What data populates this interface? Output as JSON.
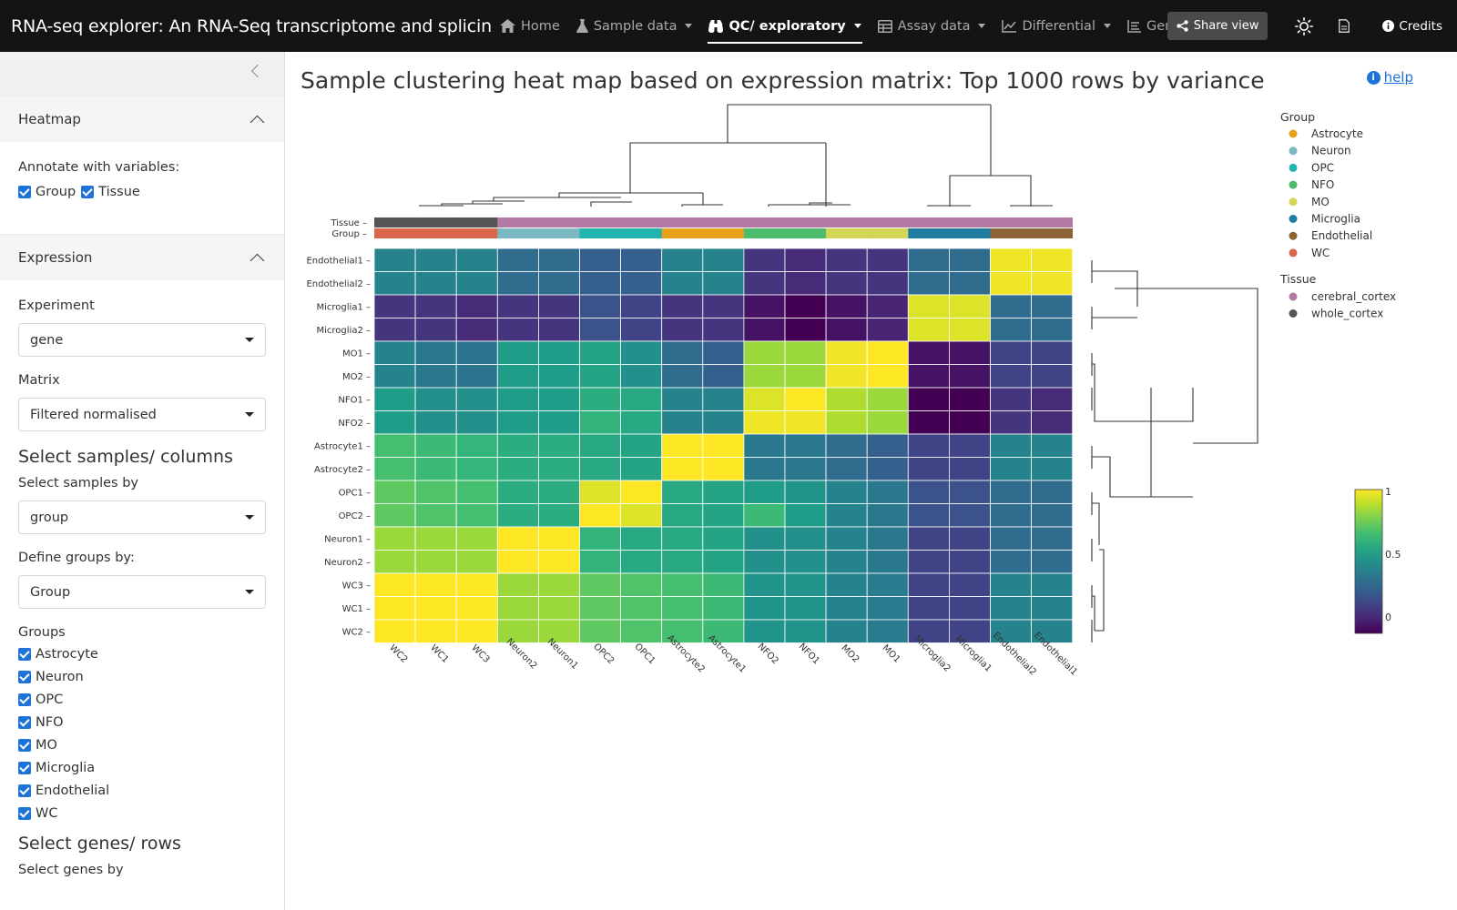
{
  "navbar": {
    "brand": "RNA-seq explorer: An RNA-Seq transcriptome and splicing d...",
    "items": [
      {
        "label": "Home",
        "icon": "home-icon",
        "dropdown": false,
        "active": false
      },
      {
        "label": "Sample data",
        "icon": "flask-icon",
        "dropdown": true,
        "active": false
      },
      {
        "label": "QC/ exploratory",
        "icon": "binoculars-icon",
        "dropdown": true,
        "active": true
      },
      {
        "label": "Assay data",
        "icon": "table-icon",
        "dropdown": true,
        "active": false
      },
      {
        "label": "Differential",
        "icon": "chart-line-icon",
        "dropdown": true,
        "active": false
      },
      {
        "label": "Gene info",
        "icon": "list-icon",
        "dropdown": false,
        "active": false
      }
    ],
    "share_label": "Share view",
    "credits_label": "Credits"
  },
  "sidebar": {
    "heatmap_section": {
      "title": "Heatmap",
      "annotate_label": "Annotate with variables:",
      "annotate_options": [
        {
          "label": "Group",
          "checked": true
        },
        {
          "label": "Tissue",
          "checked": true
        }
      ]
    },
    "expression_section": {
      "title": "Expression",
      "experiment_label": "Experiment",
      "experiment_value": "gene",
      "matrix_label": "Matrix",
      "matrix_value": "Filtered normalised"
    },
    "select_samples": {
      "title": "Select samples/ columns",
      "select_by_label": "Select samples by",
      "select_by_value": "group",
      "define_groups_label": "Define groups by:",
      "define_groups_value": "Group",
      "groups_label": "Groups",
      "groups": [
        {
          "label": "Astrocyte",
          "checked": true
        },
        {
          "label": "Neuron",
          "checked": true
        },
        {
          "label": "OPC",
          "checked": true
        },
        {
          "label": "NFO",
          "checked": true
        },
        {
          "label": "MO",
          "checked": true
        },
        {
          "label": "Microglia",
          "checked": true
        },
        {
          "label": "Endothelial",
          "checked": true
        },
        {
          "label": "WC",
          "checked": true
        }
      ]
    },
    "select_genes": {
      "title": "Select genes/ rows",
      "select_by_label": "Select genes by"
    }
  },
  "main": {
    "title": "Sample clustering heat map based on expression matrix: Top 1000 rows by variance",
    "help_label": "help"
  },
  "chart_data": {
    "type": "heatmap",
    "title": "",
    "columns": [
      "WC2",
      "WC1",
      "WC3",
      "Neuron2",
      "Neuron1",
      "OPC2",
      "OPC1",
      "Astrocyte2",
      "Astrocyte1",
      "NFO2",
      "NFO1",
      "MO2",
      "MO1",
      "Microglia2",
      "Microglia1",
      "Endothelial2",
      "Endothelial1"
    ],
    "rows": [
      "Endothelial1",
      "Endothelial2",
      "Microglia1",
      "Microglia2",
      "MO1",
      "MO2",
      "NFO1",
      "NFO2",
      "Astrocyte1",
      "Astrocyte2",
      "OPC1",
      "OPC2",
      "Neuron1",
      "Neuron2",
      "WC3",
      "WC1",
      "WC2"
    ],
    "values": [
      [
        0.45,
        0.45,
        0.45,
        0.35,
        0.35,
        0.3,
        0.3,
        0.45,
        0.45,
        0.15,
        0.12,
        0.15,
        0.15,
        0.35,
        0.35,
        0.98,
        0.98
      ],
      [
        0.45,
        0.45,
        0.45,
        0.35,
        0.35,
        0.3,
        0.3,
        0.45,
        0.45,
        0.15,
        0.12,
        0.15,
        0.15,
        0.35,
        0.35,
        0.98,
        0.98
      ],
      [
        0.15,
        0.15,
        0.12,
        0.15,
        0.15,
        0.25,
        0.2,
        0.15,
        0.15,
        0.05,
        0.0,
        0.05,
        0.1,
        0.95,
        0.95,
        0.35,
        0.35
      ],
      [
        0.15,
        0.15,
        0.12,
        0.15,
        0.15,
        0.25,
        0.2,
        0.15,
        0.15,
        0.05,
        0.0,
        0.05,
        0.1,
        0.95,
        0.95,
        0.35,
        0.35
      ],
      [
        0.45,
        0.4,
        0.38,
        0.55,
        0.55,
        0.58,
        0.5,
        0.35,
        0.3,
        0.85,
        0.85,
        0.98,
        1.0,
        0.05,
        0.05,
        0.2,
        0.2
      ],
      [
        0.45,
        0.4,
        0.38,
        0.55,
        0.55,
        0.58,
        0.5,
        0.35,
        0.3,
        0.85,
        0.85,
        0.98,
        1.0,
        0.05,
        0.05,
        0.2,
        0.2
      ],
      [
        0.55,
        0.5,
        0.5,
        0.55,
        0.55,
        0.62,
        0.6,
        0.45,
        0.45,
        0.95,
        1.0,
        0.88,
        0.85,
        0.0,
        0.0,
        0.15,
        0.12
      ],
      [
        0.55,
        0.5,
        0.5,
        0.55,
        0.55,
        0.65,
        0.6,
        0.45,
        0.45,
        0.98,
        0.98,
        0.88,
        0.85,
        0.0,
        0.0,
        0.15,
        0.12
      ],
      [
        0.7,
        0.68,
        0.66,
        0.62,
        0.62,
        0.6,
        0.58,
        1.0,
        1.0,
        0.4,
        0.4,
        0.35,
        0.3,
        0.2,
        0.2,
        0.45,
        0.45
      ],
      [
        0.7,
        0.68,
        0.66,
        0.62,
        0.62,
        0.6,
        0.58,
        1.0,
        1.0,
        0.4,
        0.4,
        0.35,
        0.3,
        0.2,
        0.2,
        0.45,
        0.45
      ],
      [
        0.75,
        0.72,
        0.7,
        0.62,
        0.62,
        0.95,
        1.0,
        0.6,
        0.58,
        0.55,
        0.52,
        0.45,
        0.4,
        0.25,
        0.25,
        0.35,
        0.35
      ],
      [
        0.75,
        0.72,
        0.7,
        0.62,
        0.62,
        1.0,
        0.95,
        0.6,
        0.58,
        0.68,
        0.55,
        0.45,
        0.4,
        0.25,
        0.25,
        0.35,
        0.35
      ],
      [
        0.85,
        0.85,
        0.85,
        1.0,
        1.0,
        0.65,
        0.6,
        0.6,
        0.58,
        0.5,
        0.5,
        0.45,
        0.4,
        0.2,
        0.2,
        0.35,
        0.35
      ],
      [
        0.85,
        0.85,
        0.85,
        1.0,
        1.0,
        0.65,
        0.6,
        0.6,
        0.58,
        0.5,
        0.5,
        0.45,
        0.4,
        0.2,
        0.2,
        0.35,
        0.35
      ],
      [
        1.0,
        1.0,
        1.0,
        0.85,
        0.85,
        0.75,
        0.72,
        0.7,
        0.68,
        0.52,
        0.52,
        0.45,
        0.42,
        0.2,
        0.2,
        0.45,
        0.45
      ],
      [
        1.0,
        1.0,
        1.0,
        0.85,
        0.85,
        0.75,
        0.72,
        0.7,
        0.68,
        0.52,
        0.52,
        0.45,
        0.42,
        0.2,
        0.2,
        0.45,
        0.45
      ],
      [
        1.0,
        1.0,
        1.0,
        0.85,
        0.85,
        0.75,
        0.72,
        0.7,
        0.68,
        0.52,
        0.52,
        0.45,
        0.42,
        0.2,
        0.2,
        0.45,
        0.45
      ]
    ],
    "column_annotations": {
      "Tissue": [
        "whole_cortex",
        "whole_cortex",
        "whole_cortex",
        "cerebral_cortex",
        "cerebral_cortex",
        "cerebral_cortex",
        "cerebral_cortex",
        "cerebral_cortex",
        "cerebral_cortex",
        "cerebral_cortex",
        "cerebral_cortex",
        "cerebral_cortex",
        "cerebral_cortex",
        "cerebral_cortex",
        "cerebral_cortex",
        "cerebral_cortex",
        "cerebral_cortex"
      ],
      "Group": [
        "WC",
        "WC",
        "WC",
        "Neuron",
        "Neuron",
        "OPC",
        "OPC",
        "Astrocyte",
        "Astrocyte",
        "NFO",
        "NFO",
        "MO",
        "MO",
        "Microglia",
        "Microglia",
        "Endothelial",
        "Endothelial"
      ]
    },
    "annotation_labels": [
      "Tissue",
      "Group"
    ],
    "legend": {
      "group_title": "Group",
      "group_items": [
        {
          "name": "Astrocyte",
          "color": "#e8a11a"
        },
        {
          "name": "Neuron",
          "color": "#7ab8c2"
        },
        {
          "name": "OPC",
          "color": "#22b4b0"
        },
        {
          "name": "NFO",
          "color": "#4cbb6c"
        },
        {
          "name": "MO",
          "color": "#d4d455"
        },
        {
          "name": "Microglia",
          "color": "#1f7ca3"
        },
        {
          "name": "Endothelial",
          "color": "#8b6335"
        },
        {
          "name": "WC",
          "color": "#d9654a"
        }
      ],
      "tissue_title": "Tissue",
      "tissue_items": [
        {
          "name": "cerebral_cortex",
          "color": "#b57aa4"
        },
        {
          "name": "whole_cortex",
          "color": "#555555"
        }
      ]
    },
    "colorbar": {
      "range": [
        0,
        1
      ],
      "ticks": [
        "0",
        "0.5",
        "1"
      ]
    },
    "colormap": "viridis"
  }
}
